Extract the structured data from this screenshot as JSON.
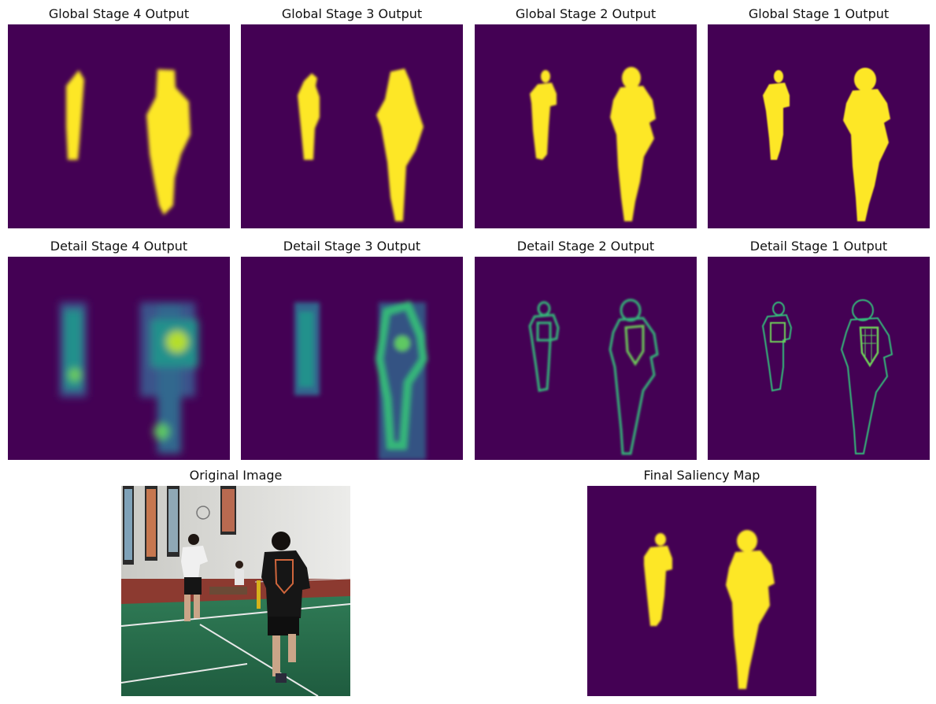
{
  "panels": {
    "g4": {
      "title": "Global Stage 4 Output"
    },
    "g3": {
      "title": "Global Stage 3 Output"
    },
    "g2": {
      "title": "Global Stage 2 Output"
    },
    "g1": {
      "title": "Global Stage 1 Output"
    },
    "d4": {
      "title": "Detail Stage 4 Output"
    },
    "d3": {
      "title": "Detail Stage 3 Output"
    },
    "d2": {
      "title": "Detail Stage 2 Output"
    },
    "d1": {
      "title": "Detail Stage 1 Output"
    },
    "orig": {
      "title": "Original Image"
    },
    "final": {
      "title": "Final Saliency Map"
    }
  },
  "colors": {
    "background": "#440154",
    "foreground": "#fde725",
    "edge": "#35b779",
    "edge_light": "#6ece58",
    "detail_mid": "#21918c"
  }
}
